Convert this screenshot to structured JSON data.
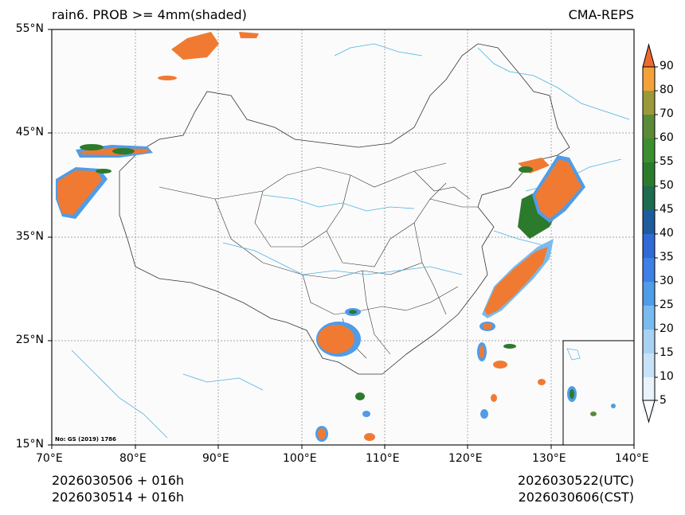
{
  "header": {
    "title_left": "rain6. PROB >= 4mm(shaded)",
    "title_right": "CMA-REPS"
  },
  "axes": {
    "lat_labels": [
      "55°N",
      "45°N",
      "35°N",
      "25°N",
      "15°N"
    ],
    "lon_labels": [
      "70°E",
      "80°E",
      "90°E",
      "100°E",
      "110°E",
      "120°E",
      "130°E",
      "140°E"
    ]
  },
  "colorbar": {
    "levels": [
      "5",
      "10",
      "15",
      "20",
      "25",
      "30",
      "35",
      "40",
      "45",
      "50",
      "55",
      "60",
      "70",
      "80",
      "90"
    ],
    "colors": [
      "#e8f3fc",
      "#c8e3f7",
      "#a8d2f2",
      "#79bbee",
      "#4f9ce8",
      "#3d80e6",
      "#2f6ad6",
      "#1f5c9c",
      "#1f6b4e",
      "#2c7a2c",
      "#3b8f2e",
      "#5b8a38",
      "#9a9a3c",
      "#f3a23a",
      "#f07a32",
      "#ee6a30"
    ]
  },
  "credit": "No: GS (2019) 1786",
  "footer": {
    "init_utc": "2026030506  +  016h",
    "init_cst": "2026030514  +  016h",
    "valid_utc": "2026030522(UTC)",
    "valid_cst": "2026030606(CST)"
  }
}
